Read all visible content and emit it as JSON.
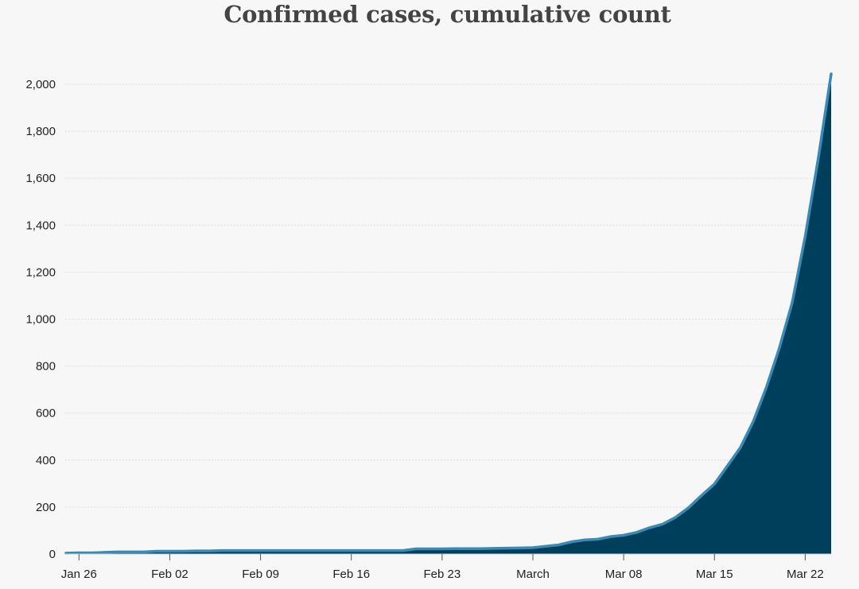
{
  "chart_data": {
    "type": "area",
    "title": "Confirmed cases, cumulative count",
    "xlabel": "",
    "ylabel": "",
    "ylim": [
      0,
      2000
    ],
    "yticks": [
      0,
      200,
      400,
      600,
      800,
      1000,
      1200,
      1400,
      1600,
      1800,
      2000
    ],
    "ytick_labels": [
      "0",
      "200",
      "400",
      "600",
      "800",
      "1,000",
      "1,200",
      "1,400",
      "1,600",
      "1,800",
      "2,000"
    ],
    "xticks": [
      "2020-01-26",
      "2020-02-02",
      "2020-02-09",
      "2020-02-16",
      "2020-02-23",
      "2020-03-01",
      "2020-03-08",
      "2020-03-15",
      "2020-03-22"
    ],
    "xtick_labels": [
      "Jan 26",
      "Feb 02",
      "Feb 09",
      "Feb 16",
      "Feb 23",
      "March",
      "Mar 08",
      "Mar 15",
      "Mar 22"
    ],
    "grid": true,
    "colors": {
      "fill": "#003f5c",
      "line": "#3a8ab5",
      "grid": "#dcdcdc"
    },
    "series": [
      {
        "x": [
          "2020-01-25",
          "2020-01-26",
          "2020-01-27",
          "2020-01-28",
          "2020-01-29",
          "2020-01-30",
          "2020-01-31",
          "2020-02-01",
          "2020-02-02",
          "2020-02-03",
          "2020-02-04",
          "2020-02-05",
          "2020-02-06",
          "2020-02-07",
          "2020-02-08",
          "2020-02-09",
          "2020-02-10",
          "2020-02-11",
          "2020-02-12",
          "2020-02-13",
          "2020-02-14",
          "2020-02-15",
          "2020-02-16",
          "2020-02-17",
          "2020-02-18",
          "2020-02-19",
          "2020-02-20",
          "2020-02-21",
          "2020-02-22",
          "2020-02-23",
          "2020-02-24",
          "2020-02-25",
          "2020-02-26",
          "2020-02-27",
          "2020-02-28",
          "2020-02-29",
          "2020-03-01",
          "2020-03-02",
          "2020-03-03",
          "2020-03-04",
          "2020-03-05",
          "2020-03-06",
          "2020-03-07",
          "2020-03-08",
          "2020-03-09",
          "2020-03-10",
          "2020-03-11",
          "2020-03-12",
          "2020-03-13",
          "2020-03-14",
          "2020-03-15",
          "2020-03-16",
          "2020-03-17",
          "2020-03-18",
          "2020-03-19",
          "2020-03-20",
          "2020-03-21",
          "2020-03-22",
          "2020-03-23",
          "2020-03-24"
        ],
        "values": [
          4,
          5,
          5,
          7,
          9,
          9,
          9,
          12,
          12,
          12,
          13,
          13,
          15,
          15,
          15,
          15,
          15,
          15,
          15,
          15,
          15,
          15,
          15,
          15,
          15,
          15,
          15,
          22,
          22,
          22,
          23,
          23,
          23,
          24,
          25,
          26,
          27,
          33,
          39,
          52,
          60,
          63,
          74,
          80,
          92,
          112,
          127,
          156,
          197,
          249,
          298,
          375,
          453,
          565,
          709,
          876,
          1071,
          1352,
          1682,
          2044
        ]
      }
    ]
  }
}
